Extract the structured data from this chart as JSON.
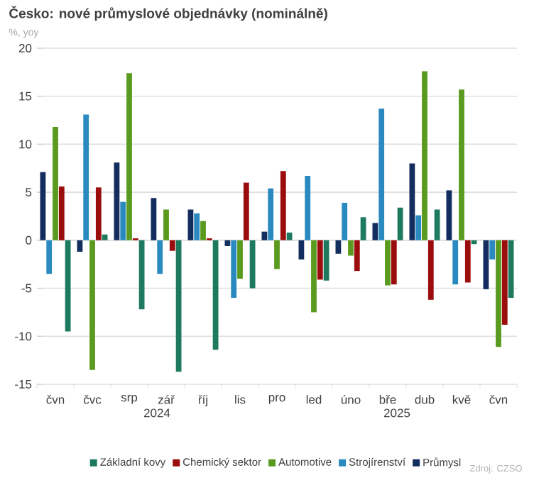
{
  "chart_data": {
    "type": "bar",
    "title": "Česko: nové průmyslové objednávky (nominálně)",
    "ylabel": "%, yoy",
    "categories": [
      "čvn",
      "čvc",
      "srp",
      "zář",
      "říj",
      "lis",
      "pro",
      "led",
      "úno",
      "bře",
      "dub",
      "kvě",
      "čvn"
    ],
    "series": [
      {
        "name": "Průmysl",
        "color": "#132d5e",
        "values": [
          7.1,
          -1.2,
          8.1,
          4.4,
          3.2,
          -0.6,
          0.9,
          -2.0,
          -1.4,
          1.8,
          8.0,
          5.2,
          -5.1
        ]
      },
      {
        "name": "Strojírenství",
        "color": "#2a8ac0",
        "values": [
          -3.5,
          13.1,
          4.0,
          -3.5,
          2.8,
          -6.0,
          5.4,
          6.7,
          3.9,
          13.7,
          2.6,
          -4.6,
          -2.0
        ]
      },
      {
        "name": "Automotive",
        "color": "#5a9a1e",
        "values": [
          11.8,
          -13.5,
          17.4,
          3.2,
          2.0,
          -4.0,
          -3.0,
          -7.5,
          -1.6,
          -4.7,
          17.6,
          15.7,
          -11.1
        ]
      },
      {
        "name": "Chemický sektor",
        "color": "#9b0d0d",
        "values": [
          5.6,
          5.5,
          0.2,
          -1.1,
          0.2,
          6.0,
          7.2,
          -4.1,
          -3.2,
          -4.6,
          -6.2,
          -4.4,
          -8.8
        ]
      },
      {
        "name": "Základní kovy",
        "color": "#1e7a5f",
        "values": [
          -9.5,
          0.6,
          -7.2,
          -13.7,
          -11.4,
          -5.0,
          0.8,
          -4.2,
          2.4,
          3.4,
          3.2,
          -0.4,
          -6.0
        ]
      }
    ],
    "ylim": [
      -15,
      20
    ],
    "yticks": [
      -15,
      -10,
      -5,
      0,
      5,
      10,
      15,
      20
    ],
    "grid": "y",
    "legend": "bottom",
    "annotations": [
      "2024",
      "2025",
      "Zdroj: CZSO"
    ]
  }
}
